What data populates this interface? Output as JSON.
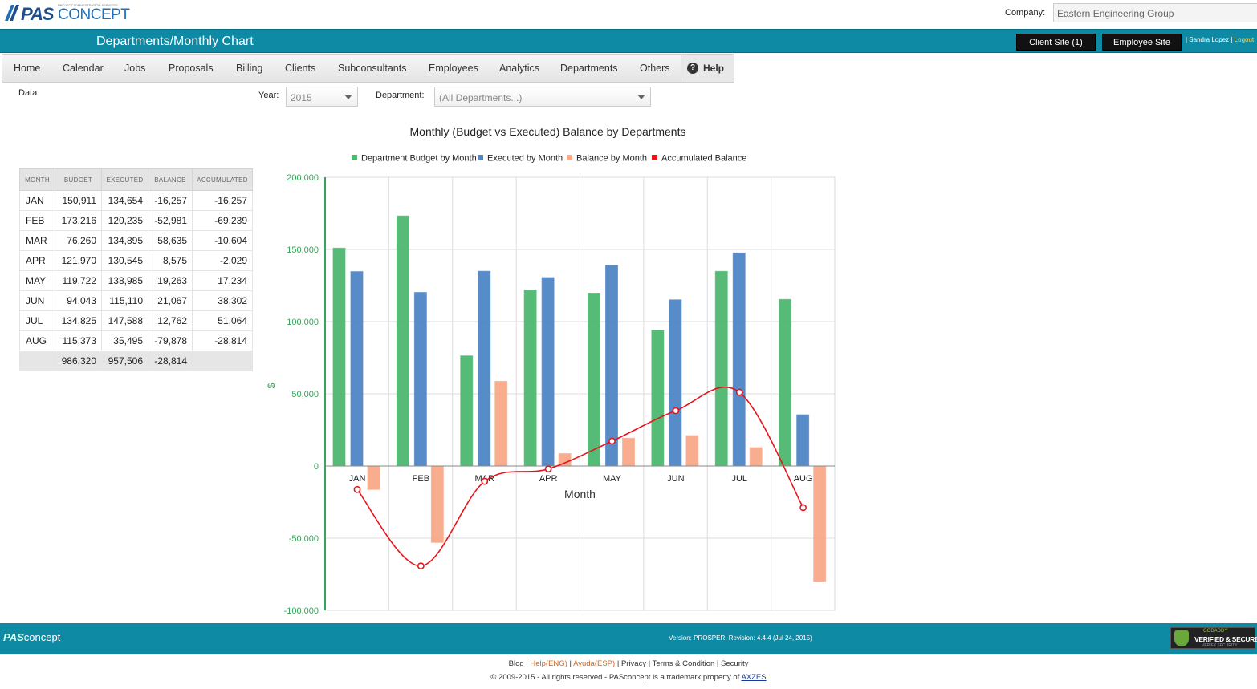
{
  "header": {
    "logo_pas": "PAS",
    "logo_concept": "CONCEPT",
    "logo_tag": "PROJECT ADMINISTRATION SERVICES",
    "company_label": "Company:",
    "company_value": "Eastern Engineering Group"
  },
  "titlebar": {
    "title": "Departments/Monthly Chart",
    "client_site": "Client Site (1)",
    "employee_site": "Employee Site",
    "user_name": "| Sandra Lopez",
    "separator": "|",
    "logout": "Logout"
  },
  "nav": {
    "items": [
      "Home",
      "Calendar",
      "Jobs",
      "Proposals",
      "Billing",
      "Clients",
      "Subconsultants",
      "Employees",
      "Analytics",
      "Departments",
      "Others"
    ],
    "help": "Help"
  },
  "filters": {
    "data_tab": "Data",
    "year_label": "Year:",
    "year_value": "2015",
    "department_label": "Department:",
    "department_value": "(All Departments...)"
  },
  "table": {
    "headers": [
      "MONTH",
      "BUDGET",
      "EXECUTED",
      "BALANCE",
      "ACCUMULATED"
    ],
    "rows": [
      [
        "JAN",
        "150,911",
        "134,654",
        "-16,257",
        "-16,257"
      ],
      [
        "FEB",
        "173,216",
        "120,235",
        "-52,981",
        "-69,239"
      ],
      [
        "MAR",
        "76,260",
        "134,895",
        "58,635",
        "-10,604"
      ],
      [
        "APR",
        "121,970",
        "130,545",
        "8,575",
        "-2,029"
      ],
      [
        "MAY",
        "119,722",
        "138,985",
        "19,263",
        "17,234"
      ],
      [
        "JUN",
        "94,043",
        "115,110",
        "21,067",
        "38,302"
      ],
      [
        "JUL",
        "134,825",
        "147,588",
        "12,762",
        "51,064"
      ],
      [
        "AUG",
        "115,373",
        "35,495",
        "-79,878",
        "-28,814"
      ]
    ],
    "totals": [
      "",
      "986,320",
      "957,506",
      "-28,814",
      ""
    ]
  },
  "chart_data": {
    "type": "bar",
    "title": "Monthly (Budget vs Executed) Balance by Departments",
    "xlabel": "Month",
    "ylabel": "$",
    "ylim": [
      -100000,
      200000
    ],
    "yticks": [
      200000,
      150000,
      100000,
      50000,
      0,
      -50000,
      -100000
    ],
    "ytick_labels": [
      "200,000",
      "150,000",
      "100,000",
      "50,000",
      "0",
      "-50,000",
      "-100,000"
    ],
    "categories": [
      "JAN",
      "FEB",
      "MAR",
      "APR",
      "MAY",
      "JUN",
      "JUL",
      "AUG"
    ],
    "series": [
      {
        "name": "Department Budget by Month",
        "kind": "bar",
        "color": "#4cb870",
        "values": [
          150911,
          173216,
          76260,
          121970,
          119722,
          94043,
          134825,
          115373
        ]
      },
      {
        "name": "Executed by Month",
        "kind": "bar",
        "color": "#4f86c6",
        "values": [
          134654,
          120235,
          134895,
          130545,
          138985,
          115110,
          147588,
          35495
        ]
      },
      {
        "name": "Balance by Month",
        "kind": "bar",
        "color": "#f9a98a",
        "values": [
          -16257,
          -52981,
          58635,
          8575,
          19263,
          21067,
          12762,
          -79878
        ]
      },
      {
        "name": "Accumulated Balance",
        "kind": "line",
        "color": "#e8141b",
        "values": [
          -16257,
          -69239,
          -10604,
          -2029,
          17234,
          38302,
          51064,
          -28814
        ]
      }
    ],
    "grid": true,
    "legend": "top"
  },
  "footer": {
    "logo_pas": "PAS",
    "logo_concept": "concept",
    "version": "Version: PROSPER, Revision: 4.4.4 (Jul 24, 2015)",
    "badge_line1": "GODADDY",
    "badge_line2": "VERIFIED & SECURED",
    "badge_line3": "VERIFY SECURITY",
    "links": {
      "blog": "Blog",
      "help": "Help(ENG)",
      "ayuda": "Ayuda(ESP)",
      "privacy": "Privacy",
      "terms": "Terms & Condition",
      "security": "Security"
    },
    "copyright": "© 2009-2015 - All rights reserved - PASconcept is a trademark property of",
    "axzes": "AXZES"
  }
}
